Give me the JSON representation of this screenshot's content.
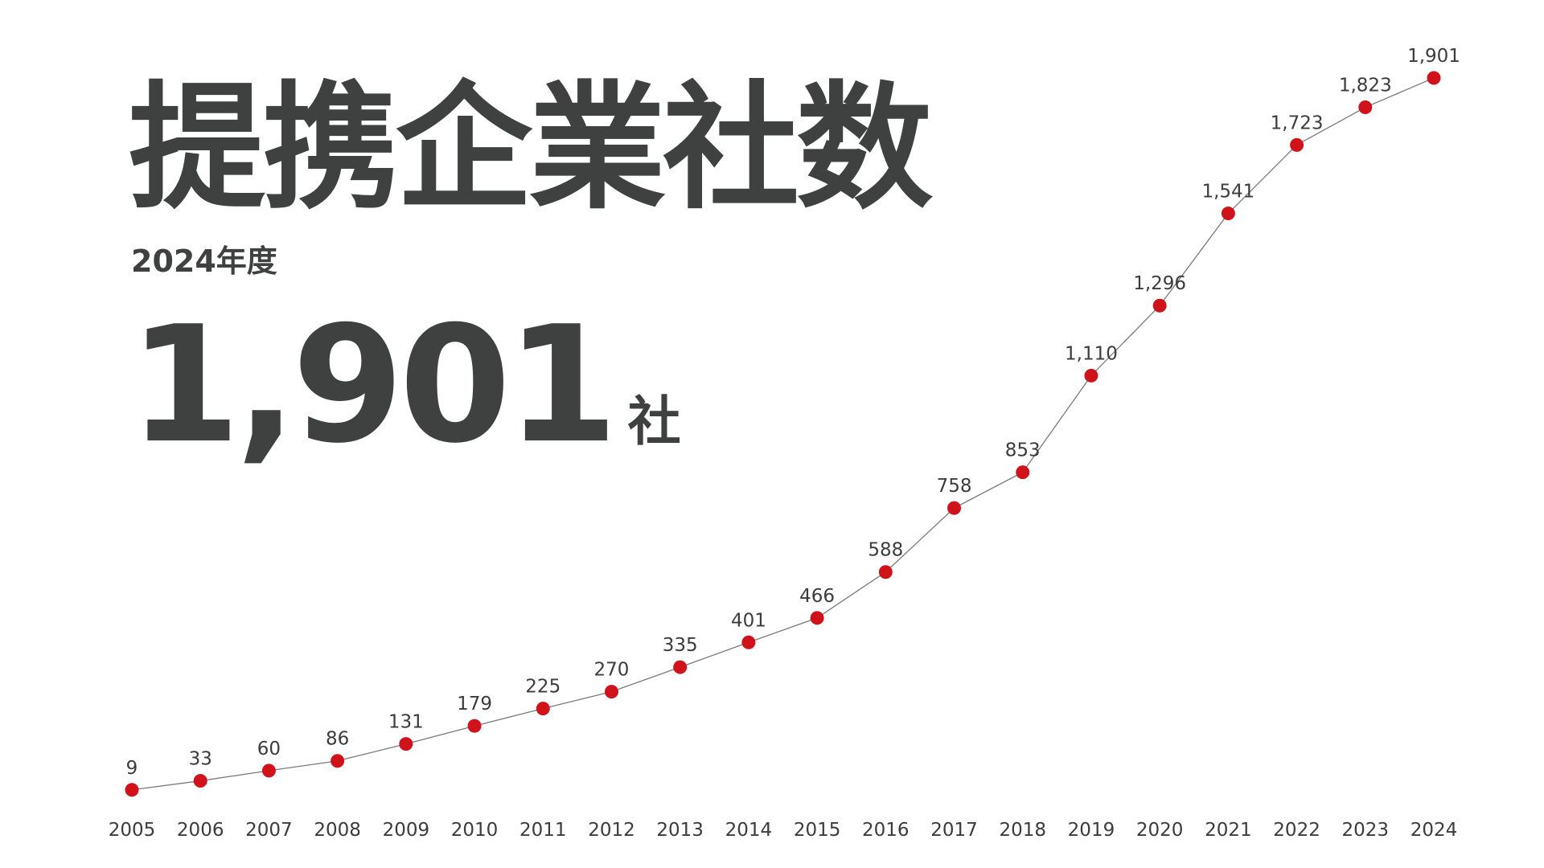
{
  "header": {
    "title": "提携企業社数",
    "subtitle": "2024年度",
    "highlight_value": "1,901",
    "highlight_unit": "社"
  },
  "chart_data": {
    "type": "line",
    "title": "",
    "xlabel": "",
    "ylabel": "",
    "categories": [
      "2005",
      "2006",
      "2007",
      "2008",
      "2009",
      "2010",
      "2011",
      "2012",
      "2013",
      "2014",
      "2015",
      "2016",
      "2017",
      "2018",
      "2019",
      "2020",
      "2021",
      "2022",
      "2023",
      "2024"
    ],
    "values": [
      9,
      33,
      60,
      86,
      131,
      179,
      225,
      270,
      335,
      401,
      466,
      588,
      758,
      853,
      1110,
      1296,
      1541,
      1723,
      1823,
      1901
    ],
    "data_labels": [
      "9",
      "33",
      "60",
      "86",
      "131",
      "179",
      "225",
      "270",
      "335",
      "401",
      "466",
      "588",
      "758",
      "853",
      "1,110",
      "1,296",
      "1,541",
      "1,723",
      "1,823",
      "1,901"
    ],
    "ylim": [
      0,
      1901
    ],
    "grid": false,
    "legend": "none",
    "colors": {
      "marker": "#d0121b",
      "line": "#7a7a7a",
      "text": "#3c3c3c"
    }
  }
}
